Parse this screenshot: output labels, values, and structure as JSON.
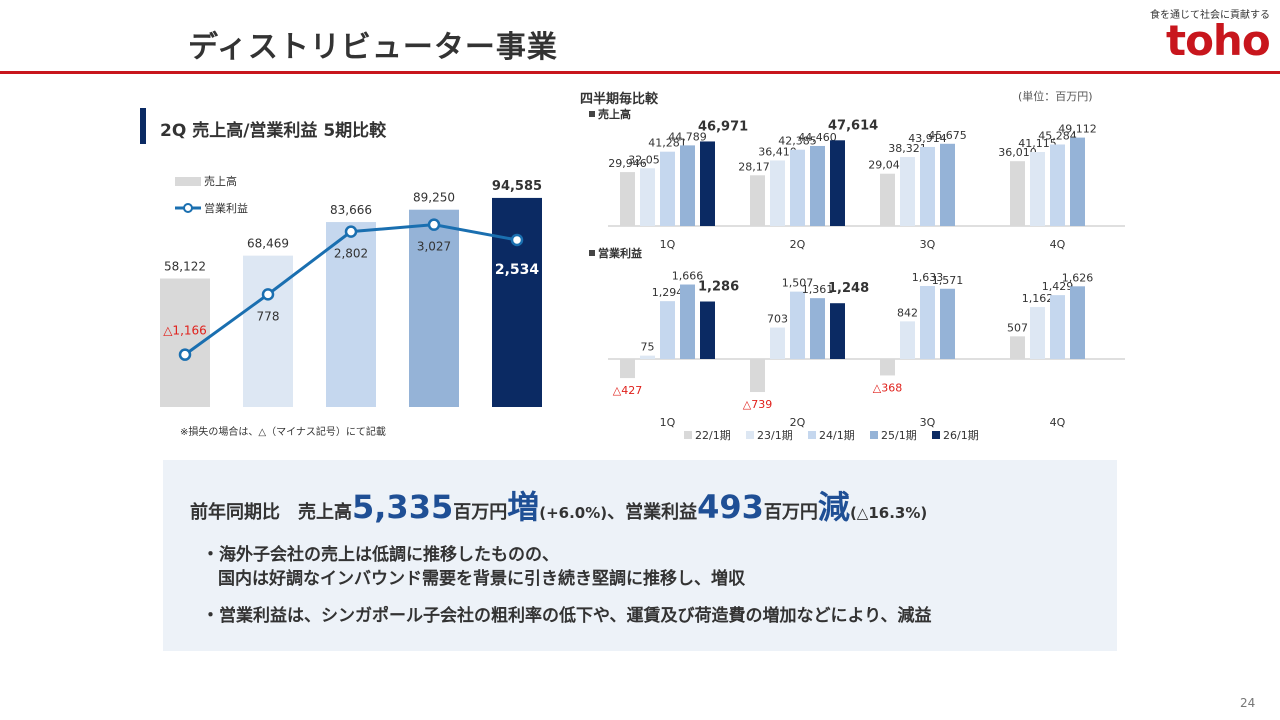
{
  "page": {
    "title": "ディストリビューター事業",
    "slogan": "食を通じて社会に貢献する",
    "logo_text": "toho",
    "page_number": "24",
    "colors": {
      "accent_red": "#c8161d",
      "navy": "#0b2a63",
      "box_bg": "#edf2f8",
      "highlight_blue": "#1f4f95"
    }
  },
  "left_section": {
    "title": "2Q 売上高/営業利益 5期比較",
    "note": "※損失の場合は、△（マイナス記号）にて記載"
  },
  "right_section": {
    "title": "四半期毎比較",
    "unit": "(単位：百万円)"
  },
  "summary": {
    "prefix": "前年同期比　売上高",
    "sales_diff": "5,335",
    "unit1": "百万円",
    "dir1": "増",
    "pct1": "(+6.0%)",
    "mid": "、営業利益",
    "profit_diff": "493",
    "unit2": "百万円",
    "dir2": "減",
    "pct2": "(△16.3%)",
    "bullet1_line1": "・海外子会社の売上は低調に推移したものの、",
    "bullet1_line2": "国内は好調なインバウンド需要を背景に引き続き堅調に推移し、増収",
    "bullet2": "・営業利益は、シンガポール子会社の粗利率の低下や、運賃及び荷造費の増加などにより、減益"
  },
  "chart_data": [
    {
      "type": "bar",
      "categories": [
        "",
        "",
        "",
        "",
        ""
      ],
      "legend": [
        "売上高",
        "営業利益"
      ],
      "series": [
        {
          "name": "売上高",
          "type": "bar",
          "values": [
            58122,
            68469,
            83666,
            89250,
            94585
          ],
          "labels": [
            "58,122",
            "68,469",
            "83,666",
            "89,250",
            "94,585"
          ]
        },
        {
          "name": "営業利益",
          "type": "line",
          "values": [
            -1166,
            778,
            2802,
            3027,
            2534
          ],
          "labels": [
            "△1,166",
            "778",
            "2,802",
            "3,027",
            "2,534"
          ]
        }
      ],
      "bar_colors": [
        "#d9d9d9",
        "#dde7f3",
        "#c5d7ee",
        "#95b3d7",
        "#0b2a63"
      ],
      "line_color": "#1a6fb0"
    },
    {
      "type": "bar",
      "title": "売上高",
      "categories": [
        "1Q",
        "2Q",
        "3Q",
        "4Q"
      ],
      "series": [
        {
          "name": "22/1期",
          "values": [
            29946,
            28176,
            29044,
            36010
          ],
          "labels": [
            "29,946",
            "28,176",
            "29,044",
            "36,010"
          ]
        },
        {
          "name": "23/1期",
          "values": [
            32059,
            36410,
            38321,
            41115
          ],
          "labels": [
            "32,059",
            "36,410",
            "38,321",
            "41,115"
          ]
        },
        {
          "name": "24/1期",
          "values": [
            41281,
            42385,
            43914,
            45284
          ],
          "labels": [
            "41,281",
            "42,385",
            "43,914",
            "45,284"
          ]
        },
        {
          "name": "25/1期",
          "values": [
            44789,
            44460,
            45675,
            49112
          ],
          "labels": [
            "44,789",
            "44,460",
            "45,675",
            "49,112"
          ]
        },
        {
          "name": "26/1期",
          "values": [
            46971,
            47614,
            null,
            null
          ],
          "labels": [
            "46,971",
            "47,614",
            "",
            ""
          ]
        }
      ]
    },
    {
      "type": "bar",
      "title": "営業利益",
      "categories": [
        "1Q",
        "2Q",
        "3Q",
        "4Q"
      ],
      "series": [
        {
          "name": "22/1期",
          "values": [
            -427,
            -739,
            -368,
            507
          ],
          "labels": [
            "△427",
            "△739",
            "△368",
            "507"
          ]
        },
        {
          "name": "23/1期",
          "values": [
            75,
            703,
            842,
            1162
          ],
          "labels": [
            "75",
            "703",
            "842",
            "1,162"
          ]
        },
        {
          "name": "24/1期",
          "values": [
            1294,
            1507,
            1633,
            1429
          ],
          "labels": [
            "1,294",
            "1,507",
            "1,633",
            "1,429"
          ]
        },
        {
          "name": "25/1期",
          "values": [
            1666,
            1361,
            1571,
            1626
          ],
          "labels": [
            "1,666",
            "1,361",
            "1,571",
            "1,626"
          ]
        },
        {
          "name": "26/1期",
          "values": [
            1286,
            1248,
            null,
            null
          ],
          "labels": [
            "1,286",
            "1,248",
            "",
            ""
          ]
        }
      ],
      "legend": [
        "22/1期",
        "23/1期",
        "24/1期",
        "25/1期",
        "26/1期"
      ],
      "series_colors": [
        "#d9d9d9",
        "#dde7f3",
        "#c5d7ee",
        "#95b3d7",
        "#0b2a63"
      ],
      "negative_label_color": "#e0201b"
    }
  ]
}
